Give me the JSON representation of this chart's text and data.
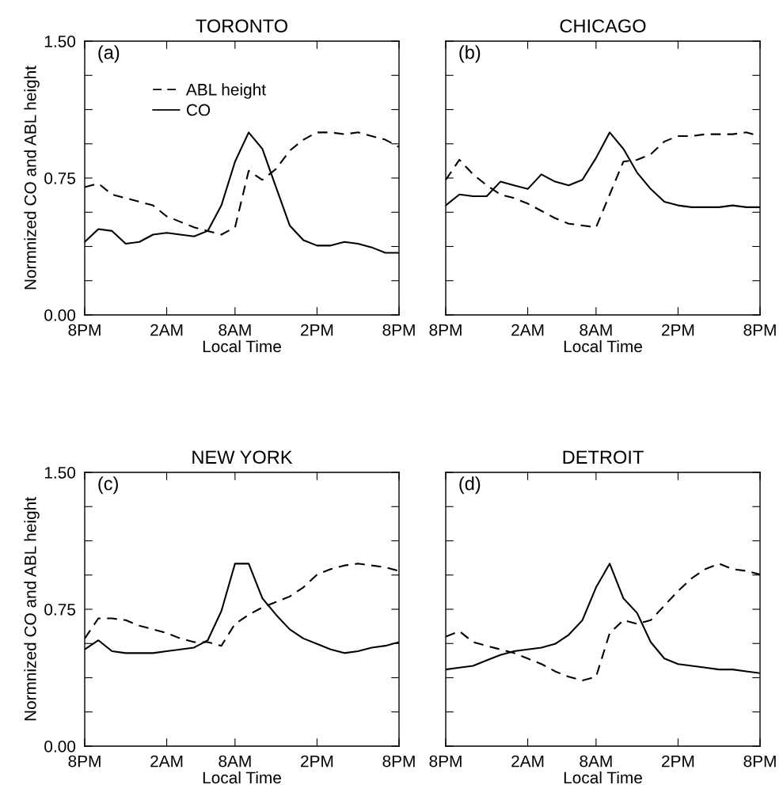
{
  "chart_data": [
    {
      "type": "line",
      "title": "TORONTO",
      "xlabel": "Local Time",
      "ylabel": "Normnized CO and ABL height",
      "annotations": [
        "(a)"
      ],
      "legend": "top left",
      "categories": [
        "8PM",
        null,
        null,
        null,
        null,
        null,
        "2AM",
        null,
        null,
        null,
        null,
        "8AM",
        null,
        null,
        null,
        null,
        null,
        "2PM",
        null,
        null,
        null,
        null,
        null,
        "8PM"
      ],
      "ylim": [
        0,
        1.5
      ],
      "yticks": [
        {
          "value": 0,
          "label": "0.00"
        },
        {
          "value": 0.1875,
          "label": null
        },
        {
          "value": 0.375,
          "label": null
        },
        {
          "value": 0.5625,
          "label": null
        },
        {
          "value": 0.75,
          "label": "0.75"
        },
        {
          "value": 0.9375,
          "label": null
        },
        {
          "value": 1.125,
          "label": null
        },
        {
          "value": 1.3125,
          "label": null
        },
        {
          "value": 1.5,
          "label": "1.50"
        }
      ],
      "series": [
        {
          "name": "ABL height",
          "color": "#000000",
          "line_style": "dashed",
          "values": [
            0.7,
            0.72,
            0.66,
            0.64,
            0.62,
            0.6,
            0.54,
            0.51,
            0.48,
            0.46,
            0.44,
            0.48,
            0.79,
            0.74,
            0.8,
            0.9,
            0.96,
            1.0,
            1.0,
            0.99,
            1.0,
            0.98,
            0.96,
            0.92
          ]
        },
        {
          "name": "CO",
          "color": "#000000",
          "line_style": "solid",
          "values": [
            0.4,
            0.47,
            0.46,
            0.39,
            0.4,
            0.44,
            0.45,
            0.44,
            0.43,
            0.46,
            0.6,
            0.84,
            1.0,
            0.91,
            0.7,
            0.49,
            0.41,
            0.38,
            0.38,
            0.4,
            0.39,
            0.37,
            0.34,
            0.34
          ]
        }
      ]
    },
    {
      "type": "line",
      "title": "CHICAGO",
      "xlabel": "Local Time",
      "annotations": [
        "(b)"
      ],
      "tick_labels": "x",
      "categories": [
        "8PM",
        null,
        null,
        null,
        null,
        null,
        "2AM",
        null,
        null,
        null,
        null,
        "8AM",
        null,
        null,
        null,
        null,
        null,
        "2PM",
        null,
        null,
        null,
        null,
        null,
        "8PM"
      ],
      "ylim": [
        0,
        1.5
      ],
      "yticks": [
        {
          "value": 0,
          "label": null
        },
        {
          "value": 0.1875,
          "label": null
        },
        {
          "value": 0.375,
          "label": null
        },
        {
          "value": 0.5625,
          "label": null
        },
        {
          "value": 0.75,
          "label": null
        },
        {
          "value": 0.9375,
          "label": null
        },
        {
          "value": 1.125,
          "label": null
        },
        {
          "value": 1.3125,
          "label": null
        },
        {
          "value": 1.5,
          "label": null
        }
      ],
      "series": [
        {
          "color": "#000000",
          "line_style": "dashed",
          "values": [
            0.74,
            0.85,
            0.77,
            0.71,
            0.66,
            0.64,
            0.61,
            0.57,
            0.53,
            0.5,
            0.49,
            0.48,
            0.66,
            0.84,
            0.85,
            0.88,
            0.95,
            0.98,
            0.98,
            0.99,
            0.99,
            0.99,
            1.0,
            0.98
          ]
        },
        {
          "color": "#000000",
          "line_style": "solid",
          "values": [
            0.6,
            0.66,
            0.65,
            0.65,
            0.73,
            0.71,
            0.69,
            0.77,
            0.73,
            0.71,
            0.74,
            0.86,
            1.0,
            0.91,
            0.78,
            0.69,
            0.62,
            0.6,
            0.59,
            0.59,
            0.59,
            0.6,
            0.59,
            0.59
          ]
        }
      ]
    },
    {
      "type": "line",
      "title": "NEW YORK",
      "xlabel": "Local Time",
      "ylabel": "Normnized CO and ABL height",
      "annotations": [
        "(c)"
      ],
      "categories": [
        "8PM",
        null,
        null,
        null,
        null,
        null,
        "2AM",
        null,
        null,
        null,
        null,
        "8AM",
        null,
        null,
        null,
        null,
        null,
        "2PM",
        null,
        null,
        null,
        null,
        null,
        "8PM"
      ],
      "ylim": [
        0,
        1.5
      ],
      "yticks": [
        {
          "value": 0,
          "label": "0.00"
        },
        {
          "value": 0.1875,
          "label": null
        },
        {
          "value": 0.375,
          "label": null
        },
        {
          "value": 0.5625,
          "label": null
        },
        {
          "value": 0.75,
          "label": "0.75"
        },
        {
          "value": 0.9375,
          "label": null
        },
        {
          "value": 1.125,
          "label": null
        },
        {
          "value": 1.3125,
          "label": null
        },
        {
          "value": 1.5,
          "label": "1.50"
        }
      ],
      "series": [
        {
          "color": "#000000",
          "line_style": "dashed",
          "values": [
            0.59,
            0.7,
            0.7,
            0.69,
            0.66,
            0.64,
            0.62,
            0.59,
            0.57,
            0.57,
            0.55,
            0.67,
            0.72,
            0.76,
            0.79,
            0.82,
            0.87,
            0.94,
            0.97,
            0.99,
            1.0,
            0.99,
            0.98,
            0.96
          ]
        },
        {
          "color": "#000000",
          "line_style": "solid",
          "values": [
            0.53,
            0.58,
            0.52,
            0.51,
            0.51,
            0.51,
            0.52,
            0.53,
            0.54,
            0.58,
            0.74,
            1.0,
            1.0,
            0.81,
            0.72,
            0.64,
            0.59,
            0.56,
            0.53,
            0.51,
            0.52,
            0.54,
            0.55,
            0.57
          ]
        }
      ]
    },
    {
      "type": "line",
      "title": "DETROIT",
      "xlabel": "Local Time",
      "annotations": [
        "(d)"
      ],
      "tick_labels": "x",
      "categories": [
        "8PM",
        null,
        null,
        null,
        null,
        null,
        "2AM",
        null,
        null,
        null,
        null,
        "8AM",
        null,
        null,
        null,
        null,
        null,
        "2PM",
        null,
        null,
        null,
        null,
        null,
        "8PM"
      ],
      "ylim": [
        0,
        1.5
      ],
      "yticks": [
        {
          "value": 0,
          "label": null
        },
        {
          "value": 0.1875,
          "label": null
        },
        {
          "value": 0.375,
          "label": null
        },
        {
          "value": 0.5625,
          "label": null
        },
        {
          "value": 0.75,
          "label": null
        },
        {
          "value": 0.9375,
          "label": null
        },
        {
          "value": 1.125,
          "label": null
        },
        {
          "value": 1.3125,
          "label": null
        },
        {
          "value": 1.5,
          "label": null
        }
      ],
      "series": [
        {
          "color": "#000000",
          "line_style": "dashed",
          "values": [
            0.6,
            0.63,
            0.57,
            0.55,
            0.53,
            0.51,
            0.48,
            0.45,
            0.41,
            0.38,
            0.36,
            0.38,
            0.62,
            0.69,
            0.67,
            0.69,
            0.77,
            0.85,
            0.92,
            0.97,
            1.0,
            0.97,
            0.96,
            0.94
          ]
        },
        {
          "color": "#000000",
          "line_style": "solid",
          "values": [
            0.42,
            0.43,
            0.44,
            0.47,
            0.5,
            0.52,
            0.53,
            0.54,
            0.56,
            0.61,
            0.69,
            0.87,
            1.0,
            0.81,
            0.73,
            0.57,
            0.48,
            0.45,
            0.44,
            0.43,
            0.42,
            0.42,
            0.41,
            0.4
          ]
        }
      ]
    }
  ]
}
